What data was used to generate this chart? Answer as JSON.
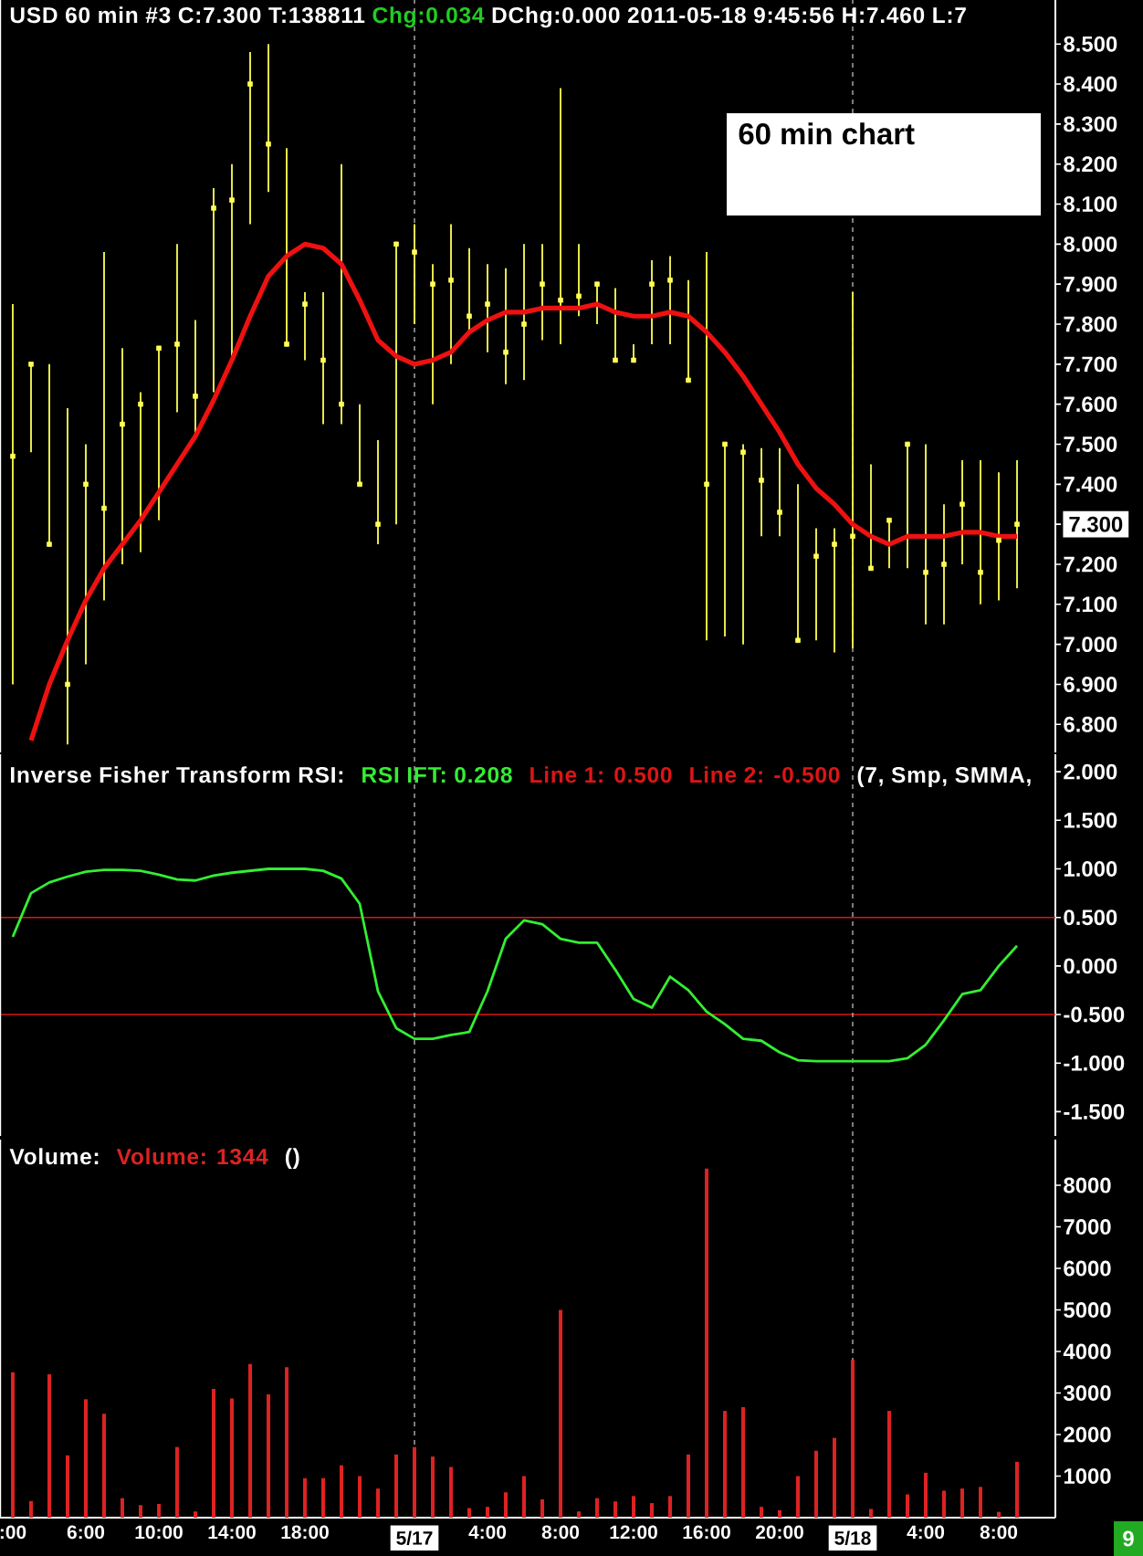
{
  "chart_data": [
    {
      "type": "scatter",
      "title": "USD  60 min  #3 C:7.300 T:138811",
      "subtitle": "60 min chart",
      "annotations": [
        "Chg:0.034",
        "DChg:0.000 2011-05-18 9:45:56 H:7.460 L:7"
      ],
      "x": [
        "2011-05-16T02:00",
        "2011-05-16T03:00",
        "2011-05-16T04:00",
        "2011-05-16T05:00",
        "2011-05-16T06:00",
        "2011-05-16T07:00",
        "2011-05-16T08:00",
        "2011-05-16T09:00",
        "2011-05-16T10:00",
        "2011-05-16T11:00",
        "2011-05-16T12:00",
        "2011-05-16T13:00",
        "2011-05-16T14:00",
        "2011-05-16T15:00",
        "2011-05-16T16:00",
        "2011-05-16T17:00",
        "2011-05-16T18:00",
        "2011-05-16T19:00",
        "2011-05-16T20:00",
        "2011-05-16T21:00",
        "2011-05-16T22:00",
        "2011-05-16T23:00",
        "2011-05-17T00:00",
        "2011-05-17T01:00",
        "2011-05-17T02:00",
        "2011-05-17T03:00",
        "2011-05-17T04:00",
        "2011-05-17T05:00",
        "2011-05-17T06:00",
        "2011-05-17T07:00",
        "2011-05-17T08:00",
        "2011-05-17T09:00",
        "2011-05-17T10:00",
        "2011-05-17T11:00",
        "2011-05-17T12:00",
        "2011-05-17T13:00",
        "2011-05-17T14:00",
        "2011-05-17T15:00",
        "2011-05-17T16:00",
        "2011-05-17T17:00",
        "2011-05-17T18:00",
        "2011-05-17T19:00",
        "2011-05-17T20:00",
        "2011-05-17T21:00",
        "2011-05-17T22:00",
        "2011-05-17T23:00",
        "2011-05-18T00:00",
        "2011-05-18T01:00",
        "2011-05-18T02:00",
        "2011-05-18T03:00",
        "2011-05-18T04:00",
        "2011-05-18T05:00",
        "2011-05-18T06:00",
        "2011-05-18T07:00",
        "2011-05-18T08:00",
        "2011-05-18T09:00"
      ],
      "xlim": [
        "2011-05-16T01:18",
        "2011-05-18T11:06"
      ],
      "ylim": [
        6.73,
        8.61
      ],
      "yticks": [
        {
          "value": 8.5,
          "label": "8.500"
        },
        {
          "value": 8.4,
          "label": "8.400"
        },
        {
          "value": 8.3,
          "label": "8.300"
        },
        {
          "value": 8.2,
          "label": "8.200"
        },
        {
          "value": 8.1,
          "label": "8.100"
        },
        {
          "value": 8.0,
          "label": "8.000"
        },
        {
          "value": 7.9,
          "label": "7.900"
        },
        {
          "value": 7.8,
          "label": "7.800"
        },
        {
          "value": 7.7,
          "label": "7.700"
        },
        {
          "value": 7.6,
          "label": "7.600"
        },
        {
          "value": 7.5,
          "label": "7.500"
        },
        {
          "value": 7.4,
          "label": "7.400"
        },
        {
          "value": 7.3,
          "label": "7.300"
        },
        {
          "value": 7.2,
          "label": "7.200"
        },
        {
          "value": 7.1,
          "label": "7.100"
        },
        {
          "value": 7.0,
          "label": "7.000"
        },
        {
          "value": 6.9,
          "label": "6.900"
        },
        {
          "value": 6.8,
          "label": "6.800"
        }
      ],
      "tick_labels": "y",
      "ref_lines": [
        {
          "axis": "x",
          "value": "2011-05-17T00:00",
          "color": "#b0b0b0",
          "line_style": "dashed"
        },
        {
          "axis": "x",
          "value": "2011-05-18T00:00",
          "color": "#b0b0b0",
          "line_style": "dashed"
        }
      ],
      "series": [
        {
          "type": "scatter",
          "color": "#ffff55",
          "marker": "square",
          "values": [
            7.47,
            7.7,
            7.25,
            6.9,
            7.4,
            7.34,
            7.55,
            7.6,
            7.74,
            7.75,
            7.62,
            8.09,
            8.11,
            8.4,
            8.25,
            7.75,
            7.85,
            7.71,
            7.6,
            7.4,
            7.3,
            8.0,
            7.98,
            7.9,
            7.91,
            7.82,
            7.85,
            7.73,
            7.8,
            7.9,
            7.86,
            7.87,
            7.9,
            7.71,
            7.71,
            7.9,
            7.91,
            7.66,
            7.4,
            7.5,
            7.48,
            7.41,
            7.33,
            7.01,
            7.22,
            7.25,
            7.27,
            7.19,
            7.31,
            7.5,
            7.18,
            7.2,
            7.35,
            7.18,
            7.26,
            7.3
          ],
          "errors": [
            [
              6.9,
              7.85
            ],
            [
              7.48,
              7.7
            ],
            [
              7.25,
              7.7
            ],
            [
              6.75,
              7.59
            ],
            [
              6.95,
              7.5
            ],
            [
              7.11,
              7.98
            ],
            [
              7.2,
              7.74
            ],
            [
              7.23,
              7.63
            ],
            [
              7.31,
              7.74
            ],
            [
              7.58,
              8.0
            ],
            [
              7.52,
              7.81
            ],
            [
              7.63,
              8.14
            ],
            [
              7.71,
              8.2
            ],
            [
              8.05,
              8.48
            ],
            [
              8.13,
              8.5
            ],
            [
              7.75,
              8.24
            ],
            [
              7.71,
              7.88
            ],
            [
              7.55,
              7.88
            ],
            [
              7.55,
              8.2
            ],
            [
              7.4,
              7.6
            ],
            [
              7.25,
              7.51
            ],
            [
              7.3,
              8.0
            ],
            [
              7.8,
              8.05
            ],
            [
              7.6,
              7.95
            ],
            [
              7.7,
              8.05
            ],
            [
              7.78,
              7.99
            ],
            [
              7.73,
              7.95
            ],
            [
              7.65,
              7.94
            ],
            [
              7.66,
              8.0
            ],
            [
              7.76,
              8.0
            ],
            [
              7.75,
              8.39
            ],
            [
              7.82,
              8.0
            ],
            [
              7.8,
              7.9
            ],
            [
              7.71,
              7.89
            ],
            [
              7.71,
              7.75
            ],
            [
              7.75,
              7.96
            ],
            [
              7.75,
              7.97
            ],
            [
              7.66,
              7.91
            ],
            [
              7.01,
              7.98
            ],
            [
              7.02,
              7.5
            ],
            [
              7.0,
              7.5
            ],
            [
              7.27,
              7.49
            ],
            [
              7.27,
              7.49
            ],
            [
              7.01,
              7.4
            ],
            [
              7.01,
              7.29
            ],
            [
              6.98,
              7.29
            ],
            [
              6.99,
              7.88
            ],
            [
              7.19,
              7.45
            ],
            [
              7.19,
              7.31
            ],
            [
              7.19,
              7.5
            ],
            [
              7.05,
              7.5
            ],
            [
              7.05,
              7.35
            ],
            [
              7.2,
              7.46
            ],
            [
              7.1,
              7.46
            ],
            [
              7.11,
              7.43
            ],
            [
              7.14,
              7.46
            ]
          ]
        },
        {
          "type": "line",
          "color": "#ee1111",
          "values": [
            null,
            6.76,
            6.9,
            7.01,
            7.11,
            7.19,
            7.25,
            7.31,
            7.38,
            7.45,
            7.52,
            7.61,
            7.71,
            7.82,
            7.92,
            7.97,
            8.0,
            7.99,
            7.95,
            7.86,
            7.76,
            7.72,
            7.7,
            7.71,
            7.73,
            7.78,
            7.81,
            7.83,
            7.83,
            7.84,
            7.84,
            7.84,
            7.85,
            7.83,
            7.82,
            7.82,
            7.83,
            7.82,
            7.78,
            7.73,
            7.67,
            7.6,
            7.53,
            7.45,
            7.39,
            7.35,
            7.3,
            7.27,
            7.25,
            7.27,
            7.27,
            7.27,
            7.28,
            7.28,
            7.27,
            7.27
          ]
        }
      ]
    },
    {
      "type": "line",
      "title": "Inverse Fisher Transform RSI:",
      "annotations": [
        "(7, Smp, SMMA,"
      ],
      "x": [
        "2011-05-16T02:00",
        "2011-05-16T03:00",
        "2011-05-16T04:00",
        "2011-05-16T05:00",
        "2011-05-16T06:00",
        "2011-05-16T07:00",
        "2011-05-16T08:00",
        "2011-05-16T09:00",
        "2011-05-16T10:00",
        "2011-05-16T11:00",
        "2011-05-16T12:00",
        "2011-05-16T13:00",
        "2011-05-16T14:00",
        "2011-05-16T15:00",
        "2011-05-16T16:00",
        "2011-05-16T17:00",
        "2011-05-16T18:00",
        "2011-05-16T19:00",
        "2011-05-16T20:00",
        "2011-05-16T21:00",
        "2011-05-16T22:00",
        "2011-05-16T23:00",
        "2011-05-17T00:00",
        "2011-05-17T01:00",
        "2011-05-17T02:00",
        "2011-05-17T03:00",
        "2011-05-17T04:00",
        "2011-05-17T05:00",
        "2011-05-17T06:00",
        "2011-05-17T07:00",
        "2011-05-17T08:00",
        "2011-05-17T09:00",
        "2011-05-17T10:00",
        "2011-05-17T11:00",
        "2011-05-17T12:00",
        "2011-05-17T13:00",
        "2011-05-17T14:00",
        "2011-05-17T15:00",
        "2011-05-17T16:00",
        "2011-05-17T17:00",
        "2011-05-17T18:00",
        "2011-05-17T19:00",
        "2011-05-17T20:00",
        "2011-05-17T21:00",
        "2011-05-17T22:00",
        "2011-05-17T23:00",
        "2011-05-18T00:00",
        "2011-05-18T01:00",
        "2011-05-18T02:00",
        "2011-05-18T03:00",
        "2011-05-18T04:00",
        "2011-05-18T05:00",
        "2011-05-18T06:00",
        "2011-05-18T07:00",
        "2011-05-18T08:00",
        "2011-05-18T09:00"
      ],
      "xlim": [
        "2011-05-16T01:18",
        "2011-05-18T11:06"
      ],
      "ylim": [
        -1.75,
        2.18
      ],
      "yticks": [
        {
          "value": 2,
          "label": "2.000"
        },
        {
          "value": 1.5,
          "label": "1.500"
        },
        {
          "value": 1,
          "label": "1.000"
        },
        {
          "value": 0.5,
          "label": "0.500"
        },
        {
          "value": 0,
          "label": "0.000"
        },
        {
          "value": -0.5,
          "label": "-0.500"
        },
        {
          "value": -1,
          "label": "-1.000"
        },
        {
          "value": -1.5,
          "label": "-1.500"
        }
      ],
      "tick_labels": "y",
      "ref_lines": [
        {
          "axis": "x",
          "value": "2011-05-17T00:00",
          "color": "#b0b0b0",
          "line_style": "dashed"
        },
        {
          "axis": "x",
          "value": "2011-05-18T00:00",
          "color": "#b0b0b0",
          "line_style": "dashed"
        },
        {
          "axis": "y",
          "value": 0.5,
          "label": "Line 1: 0.500",
          "color": "#dd1515"
        },
        {
          "axis": "y",
          "value": -0.5,
          "label": "Line 2: -0.500",
          "color": "#dd1515"
        }
      ],
      "series": [
        {
          "name": "RSI IFT: 0.208",
          "color": "#33ee33",
          "values": [
            0.3,
            0.75,
            0.86,
            0.92,
            0.97,
            0.99,
            0.99,
            0.98,
            0.94,
            0.89,
            0.88,
            0.93,
            0.96,
            0.98,
            1.0,
            1.0,
            1.0,
            0.98,
            0.9,
            0.64,
            -0.26,
            -0.64,
            -0.75,
            -0.75,
            -0.71,
            -0.68,
            -0.26,
            0.28,
            0.47,
            0.43,
            0.28,
            0.24,
            0.24,
            -0.04,
            -0.34,
            -0.43,
            -0.11,
            -0.25,
            -0.47,
            -0.6,
            -0.75,
            -0.77,
            -0.89,
            -0.97,
            -0.98,
            -0.98,
            -0.98,
            -0.98,
            -0.98,
            -0.95,
            -0.81,
            -0.56,
            -0.29,
            -0.25,
            0.0,
            0.208
          ]
        }
      ]
    },
    {
      "type": "bar",
      "title": "Volume:",
      "annotations": [
        "()",
        "9"
      ],
      "x": [
        "2011-05-16T02:00",
        "2011-05-16T03:00",
        "2011-05-16T04:00",
        "2011-05-16T05:00",
        "2011-05-16T06:00",
        "2011-05-16T07:00",
        "2011-05-16T08:00",
        "2011-05-16T09:00",
        "2011-05-16T10:00",
        "2011-05-16T11:00",
        "2011-05-16T12:00",
        "2011-05-16T13:00",
        "2011-05-16T14:00",
        "2011-05-16T15:00",
        "2011-05-16T16:00",
        "2011-05-16T17:00",
        "2011-05-16T18:00",
        "2011-05-16T19:00",
        "2011-05-16T20:00",
        "2011-05-16T21:00",
        "2011-05-16T22:00",
        "2011-05-16T23:00",
        "2011-05-17T00:00",
        "2011-05-17T01:00",
        "2011-05-17T02:00",
        "2011-05-17T03:00",
        "2011-05-17T04:00",
        "2011-05-17T05:00",
        "2011-05-17T06:00",
        "2011-05-17T07:00",
        "2011-05-17T08:00",
        "2011-05-17T09:00",
        "2011-05-17T10:00",
        "2011-05-17T11:00",
        "2011-05-17T12:00",
        "2011-05-17T13:00",
        "2011-05-17T14:00",
        "2011-05-17T15:00",
        "2011-05-17T16:00",
        "2011-05-17T17:00",
        "2011-05-17T18:00",
        "2011-05-17T19:00",
        "2011-05-17T20:00",
        "2011-05-17T21:00",
        "2011-05-17T22:00",
        "2011-05-17T23:00",
        "2011-05-18T00:00",
        "2011-05-18T01:00",
        "2011-05-18T02:00",
        "2011-05-18T03:00",
        "2011-05-18T04:00",
        "2011-05-18T05:00",
        "2011-05-18T06:00",
        "2011-05-18T07:00",
        "2011-05-18T08:00",
        "2011-05-18T09:00"
      ],
      "xlim": [
        "2011-05-16T01:18",
        "2011-05-18T11:06"
      ],
      "xticks": [
        {
          "value": "2011-05-16T02:00",
          "label": ":00"
        },
        {
          "value": "2011-05-16T06:00",
          "label": "6:00"
        },
        {
          "value": "2011-05-16T10:00",
          "label": "10:00"
        },
        {
          "value": "2011-05-16T14:00",
          "label": "14:00"
        },
        {
          "value": "2011-05-16T18:00",
          "label": "18:00"
        },
        {
          "value": "2011-05-17T00:00",
          "label": "5/17"
        },
        {
          "value": "2011-05-17T04:00",
          "label": "4:00"
        },
        {
          "value": "2011-05-17T08:00",
          "label": "8:00"
        },
        {
          "value": "2011-05-17T12:00",
          "label": "12:00"
        },
        {
          "value": "2011-05-17T16:00",
          "label": "16:00"
        },
        {
          "value": "2011-05-17T20:00",
          "label": "20:00"
        },
        {
          "value": "2011-05-18T00:00",
          "label": "5/18"
        },
        {
          "value": "2011-05-18T04:00",
          "label": "4:00"
        },
        {
          "value": "2011-05-18T08:00",
          "label": "8:00"
        }
      ],
      "ylim": [
        0,
        9100
      ],
      "yticks": [
        1000,
        2000,
        3000,
        4000,
        5000,
        6000,
        7000,
        8000
      ],
      "ref_lines": [
        {
          "axis": "x",
          "value": "2011-05-17T00:00",
          "color": "#b0b0b0",
          "line_style": "dashed"
        },
        {
          "axis": "x",
          "value": "2011-05-18T00:00",
          "color": "#b0b0b0",
          "line_style": "dashed"
        }
      ],
      "series": [
        {
          "name": "Volume: 1344",
          "color": "#dd2222",
          "values": [
            3500,
            400,
            3450,
            1500,
            2850,
            2500,
            470,
            300,
            330,
            1700,
            150,
            3100,
            2870,
            3700,
            2970,
            3620,
            950,
            950,
            1260,
            1000,
            700,
            1520,
            1700,
            1470,
            1220,
            230,
            260,
            610,
            1000,
            440,
            5000,
            150,
            470,
            390,
            520,
            350,
            520,
            1520,
            8400,
            2570,
            2660,
            260,
            180,
            1000,
            1610,
            1920,
            3800,
            210,
            2570,
            560,
            1080,
            650,
            700,
            740,
            140,
            1344
          ]
        }
      ]
    }
  ]
}
